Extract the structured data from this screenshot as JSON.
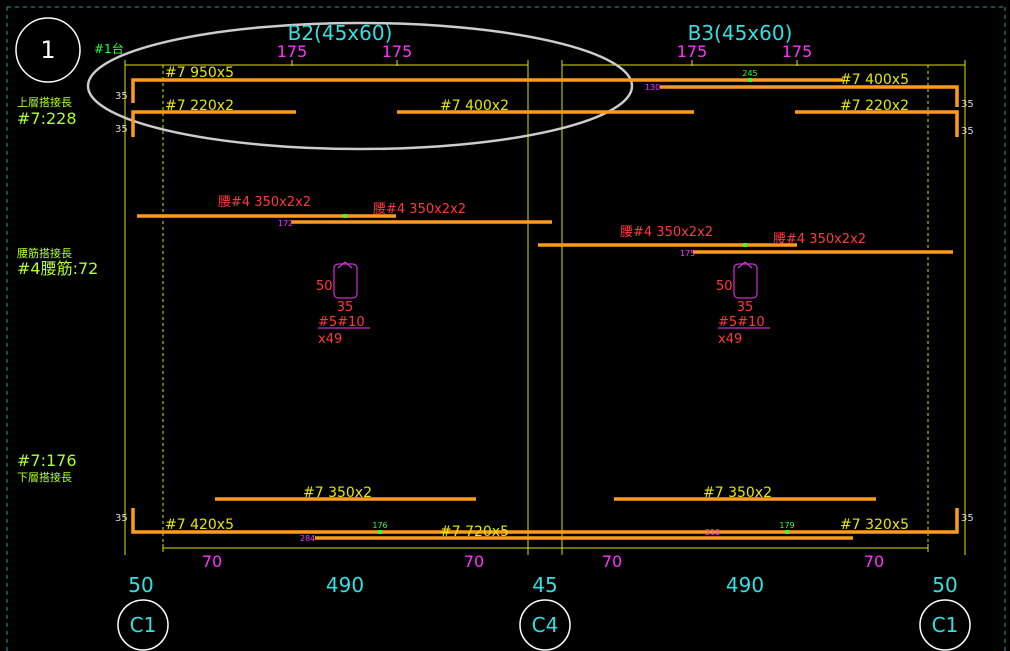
{
  "marker": "1",
  "unit": "#1台",
  "notes": [
    {
      "title": "上層搭接長",
      "value": "#7:228"
    },
    {
      "title": "腰筋搭接長",
      "value": "#4腰筋:72"
    },
    {
      "value": "#7:176",
      "title": "下層搭接長"
    }
  ],
  "beams": [
    {
      "name": "B2(45x60)",
      "top_cuts": [
        175,
        175
      ],
      "top_bars": [
        "#7 950x5",
        "#7 220x2",
        "#7 400x2"
      ],
      "waist_bars": [
        "腰#4 350x2x2",
        "腰#4 350x2x2"
      ],
      "waist_start": 172,
      "stirrup": {
        "height": 50,
        "width": 35,
        "spec": "#5#10",
        "count": "x49"
      },
      "bottom_bars": [
        "#7 350x2",
        "#7 420x5",
        "#7 720x5"
      ],
      "bottom_splice": 176,
      "bottom_start": 284,
      "bottom_cuts": [
        70,
        70
      ],
      "span": 490
    },
    {
      "name": "B3(45x60)",
      "top_cuts": [
        175,
        175
      ],
      "top_bars": [
        "#7 400x5",
        "#7 220x2"
      ],
      "top_splice": 245,
      "top_start": 130,
      "waist_bars": [
        "腰#4 350x2x2",
        "腰#4 350x2x2"
      ],
      "waist_start": 175,
      "stirrup": {
        "height": 50,
        "width": 35,
        "spec": "#5#10",
        "count": "x49"
      },
      "bottom_bars": [
        "#7 350x2",
        "#7 320x5"
      ],
      "bottom_splice": 179,
      "bottom_start": 210,
      "bottom_cuts": [
        70,
        70
      ],
      "span": 490
    }
  ],
  "hook_lengths": [
    35,
    35,
    35,
    35,
    35,
    35
  ],
  "supports": [
    {
      "name": "C1",
      "width": 50
    },
    {
      "name": "C4",
      "width": 45
    },
    {
      "name": "C1",
      "width": 50
    }
  ]
}
